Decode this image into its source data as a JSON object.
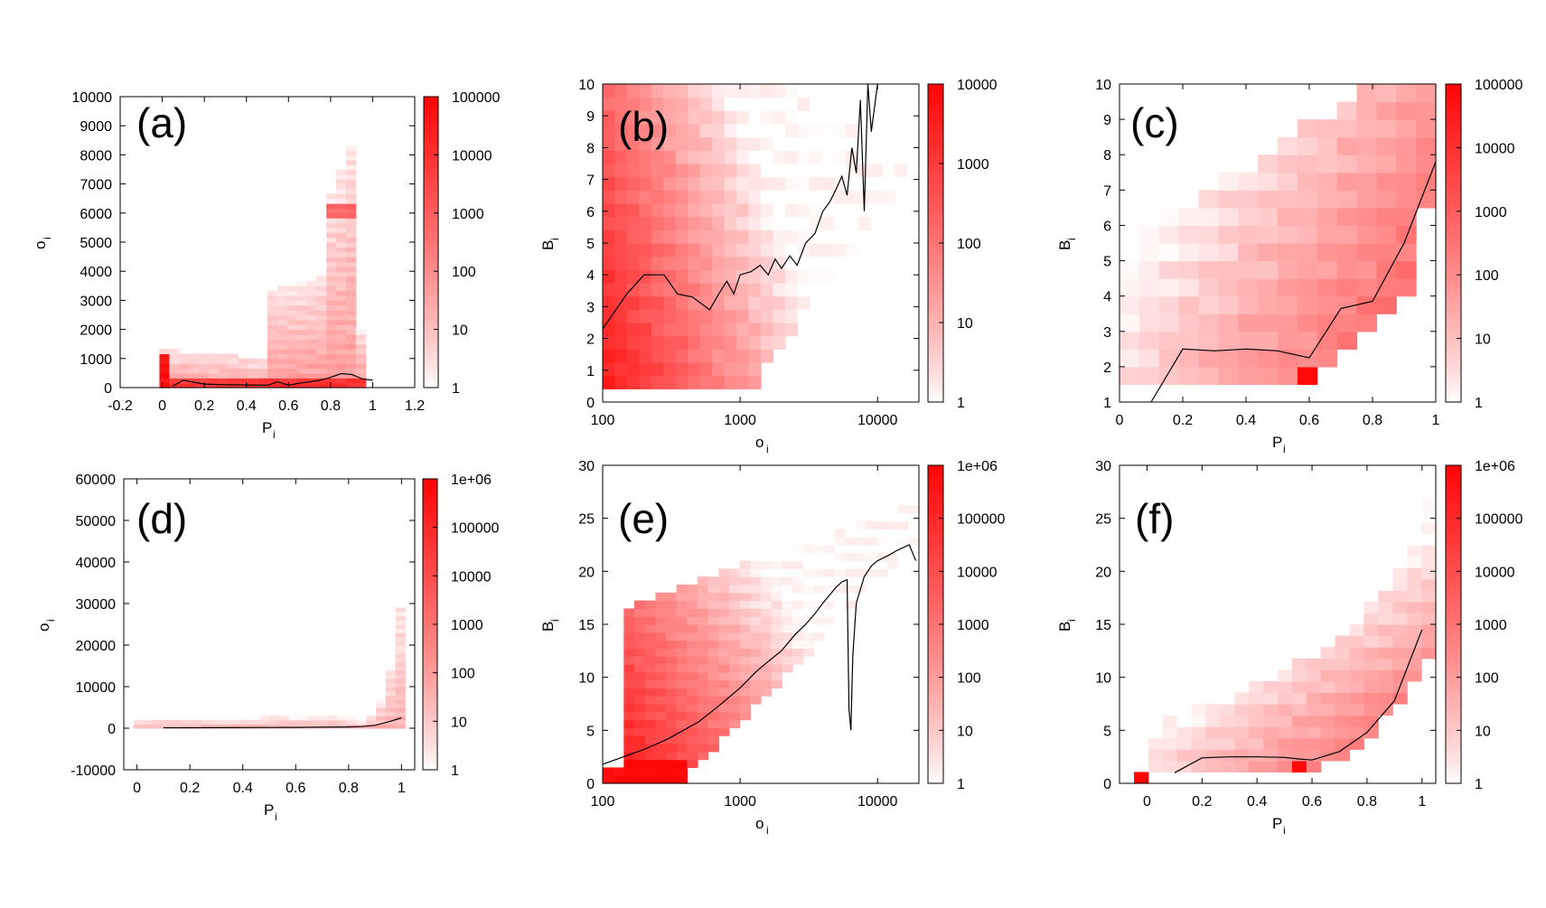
{
  "figure": {
    "background": "#ffffff",
    "accent": "#ff0000",
    "line_color": "#000000"
  },
  "chart_data": [
    {
      "id": "a",
      "type": "heatmap",
      "panel_label": "(a)",
      "xlabel": "P",
      "xlabel_sub": "i",
      "ylabel": "o",
      "ylabel_sub": "i",
      "xscale": "linear",
      "yscale": "linear",
      "xlim": [
        -0.2,
        1.2
      ],
      "ylim": [
        0,
        10000
      ],
      "xticks": [
        -0.2,
        0,
        0.2,
        0.4,
        0.6,
        0.8,
        1,
        1.2
      ],
      "xtick_labels": [
        "-0.2",
        "0",
        "0.2",
        "0.4",
        "0.6",
        "0.8",
        "1",
        "1.2"
      ],
      "yticks": [
        0,
        1000,
        2000,
        3000,
        4000,
        5000,
        6000,
        7000,
        8000,
        9000,
        10000
      ],
      "ytick_labels": [
        "0",
        "1000",
        "2000",
        "3000",
        "4000",
        "5000",
        "6000",
        "7000",
        "8000",
        "9000",
        "10000"
      ],
      "colorbar": {
        "min": 1,
        "max": 100000,
        "scale": "log",
        "ticks": [
          1,
          10,
          100,
          1000,
          10000,
          100000
        ],
        "tick_labels": [
          "1",
          "10",
          "100",
          "1000",
          "10000",
          "100000"
        ]
      },
      "mean_curve": {
        "x": [
          0.05,
          0.1,
          0.2,
          0.3,
          0.4,
          0.5,
          0.55,
          0.6,
          0.65,
          0.7,
          0.75,
          0.8,
          0.85,
          0.9,
          0.95,
          1.0
        ],
        "y": [
          50,
          250,
          120,
          100,
          90,
          80,
          200,
          80,
          150,
          200,
          250,
          350,
          480,
          450,
          300,
          250
        ]
      }
    },
    {
      "id": "b",
      "type": "heatmap",
      "panel_label": "(b)",
      "xlabel": "o",
      "xlabel_sub": "i",
      "ylabel": "B",
      "ylabel_sub": "i",
      "xscale": "log",
      "yscale": "linear",
      "xlim": [
        100,
        20000
      ],
      "ylim": [
        0,
        10
      ],
      "xticks": [
        100,
        1000,
        10000
      ],
      "xtick_labels": [
        "100",
        "1000",
        "10000"
      ],
      "yticks": [
        0,
        1,
        2,
        3,
        4,
        5,
        6,
        7,
        8,
        9,
        10
      ],
      "ytick_labels": [
        "0",
        "1",
        "2",
        "3",
        "4",
        "5",
        "6",
        "7",
        "8",
        "9",
        "10"
      ],
      "colorbar": {
        "min": 1,
        "max": 10000,
        "scale": "log",
        "ticks": [
          1,
          10,
          100,
          1000,
          10000
        ],
        "tick_labels": [
          "1",
          "10",
          "100",
          "1000",
          "10000"
        ]
      },
      "mean_curve": {
        "x": [
          100,
          150,
          200,
          280,
          350,
          450,
          600,
          700,
          800,
          900,
          1000,
          1200,
          1400,
          1600,
          1800,
          2000,
          2300,
          2600,
          3000,
          3500,
          4000,
          4500,
          5000,
          5500,
          6000,
          6500,
          7000,
          7500,
          8000,
          8500,
          9000,
          10000
        ],
        "y": [
          2.3,
          3.4,
          4.0,
          4.0,
          3.4,
          3.3,
          2.9,
          3.4,
          3.8,
          3.4,
          4.0,
          4.1,
          4.3,
          4.0,
          4.5,
          4.2,
          4.6,
          4.3,
          5.0,
          5.3,
          6.0,
          6.3,
          6.7,
          7.1,
          6.5,
          8.0,
          7.2,
          9.5,
          6.0,
          10.0,
          8.5,
          10.0
        ]
      }
    },
    {
      "id": "c",
      "type": "heatmap",
      "panel_label": "(c)",
      "xlabel": "P",
      "xlabel_sub": "i",
      "ylabel": "B",
      "ylabel_sub": "i",
      "xscale": "linear",
      "yscale": "linear",
      "xlim": [
        0,
        1
      ],
      "ylim": [
        1,
        10
      ],
      "xticks": [
        0,
        0.2,
        0.4,
        0.6,
        0.8,
        1
      ],
      "xtick_labels": [
        "0",
        "0.2",
        "0.4",
        "0.6",
        "0.8",
        "1"
      ],
      "yticks": [
        1,
        2,
        3,
        4,
        5,
        6,
        7,
        8,
        9,
        10
      ],
      "ytick_labels": [
        "1",
        "2",
        "3",
        "4",
        "5",
        "6",
        "7",
        "8",
        "9",
        "10"
      ],
      "colorbar": {
        "min": 1,
        "max": 100000,
        "scale": "log",
        "ticks": [
          1,
          10,
          100,
          1000,
          10000,
          100000
        ],
        "tick_labels": [
          "1",
          "10",
          "100",
          "1000",
          "10000",
          "100000"
        ]
      },
      "mean_curve": {
        "x": [
          0.1,
          0.2,
          0.3,
          0.4,
          0.5,
          0.6,
          0.7,
          0.8,
          0.9,
          1.0
        ],
        "y": [
          1.0,
          2.5,
          2.45,
          2.5,
          2.45,
          2.25,
          3.65,
          3.85,
          5.5,
          7.8
        ]
      }
    },
    {
      "id": "d",
      "type": "heatmap",
      "panel_label": "(d)",
      "xlabel": "P",
      "xlabel_sub": "i",
      "ylabel": "o",
      "ylabel_sub": "i",
      "xscale": "linear",
      "yscale": "linear",
      "xlim": [
        -0.05,
        1.05
      ],
      "ylim": [
        -10000,
        60000
      ],
      "xticks": [
        0,
        0.2,
        0.4,
        0.6,
        0.8,
        1
      ],
      "xtick_labels": [
        "0",
        "0.2",
        "0.4",
        "0.6",
        "0.8",
        "1"
      ],
      "yticks": [
        -10000,
        0,
        10000,
        20000,
        30000,
        40000,
        50000,
        60000
      ],
      "ytick_labels": [
        "-10000",
        "0",
        "10000",
        "20000",
        "30000",
        "40000",
        "50000",
        "60000"
      ],
      "colorbar": {
        "min": 1,
        "max": 1000000,
        "scale": "log",
        "ticks": [
          1,
          10,
          100,
          1000,
          10000,
          100000,
          1000000
        ],
        "tick_labels": [
          "1",
          "10",
          "100",
          "1000",
          "10000",
          "100000",
          "1e+06"
        ]
      },
      "mean_curve": {
        "x": [
          0.1,
          0.2,
          0.3,
          0.4,
          0.5,
          0.6,
          0.7,
          0.8,
          0.85,
          0.9,
          0.95,
          1.0
        ],
        "y": [
          100,
          100,
          120,
          150,
          180,
          200,
          250,
          300,
          400,
          700,
          1500,
          2500
        ]
      }
    },
    {
      "id": "e",
      "type": "heatmap",
      "panel_label": "(e)",
      "xlabel": "o",
      "xlabel_sub": "i",
      "ylabel": "B",
      "ylabel_sub": "i",
      "xscale": "log",
      "yscale": "linear",
      "xlim": [
        100,
        20000
      ],
      "ylim": [
        0,
        30
      ],
      "xticks": [
        100,
        1000,
        10000
      ],
      "xtick_labels": [
        "100",
        "1000",
        "10000"
      ],
      "yticks": [
        0,
        5,
        10,
        15,
        20,
        25,
        30
      ],
      "ytick_labels": [
        "0",
        "5",
        "10",
        "15",
        "20",
        "25",
        "30"
      ],
      "colorbar": {
        "min": 1,
        "max": 1000000,
        "scale": "log",
        "ticks": [
          1,
          10,
          100,
          1000,
          10000,
          100000,
          1000000
        ],
        "tick_labels": [
          "1",
          "10",
          "100",
          "1000",
          "10000",
          "100000",
          "1e+06"
        ]
      },
      "mean_curve": {
        "x": [
          100,
          200,
          300,
          500,
          700,
          1000,
          1300,
          1600,
          2000,
          2500,
          3000,
          3500,
          4000,
          4500,
          5000,
          5500,
          6000,
          6200,
          6400,
          6600,
          7000,
          8000,
          9000,
          10000,
          12000,
          14000,
          17000,
          19000
        ],
        "y": [
          1.8,
          3.2,
          4.2,
          5.8,
          7.3,
          9.0,
          10.5,
          11.5,
          12.5,
          14.0,
          15.0,
          16.0,
          17.0,
          17.8,
          18.5,
          19.0,
          19.2,
          7.0,
          5.0,
          12.0,
          17.0,
          19.5,
          20.5,
          21.0,
          21.5,
          22.0,
          22.5,
          21.0
        ]
      }
    },
    {
      "id": "f",
      "type": "heatmap",
      "panel_label": "(f)",
      "xlabel": "P",
      "xlabel_sub": "i",
      "ylabel": "B",
      "ylabel_sub": "i",
      "xscale": "linear",
      "yscale": "linear",
      "xlim": [
        -0.1,
        1.05
      ],
      "ylim": [
        0,
        30
      ],
      "xticks": [
        0,
        0.2,
        0.4,
        0.6,
        0.8,
        1
      ],
      "xtick_labels": [
        "0",
        "0.2",
        "0.4",
        "0.6",
        "0.8",
        "1"
      ],
      "yticks": [
        0,
        5,
        10,
        15,
        20,
        25,
        30
      ],
      "ytick_labels": [
        "0",
        "5",
        "10",
        "15",
        "20",
        "25",
        "30"
      ],
      "colorbar": {
        "min": 1,
        "max": 1000000,
        "scale": "log",
        "ticks": [
          1,
          10,
          100,
          1000,
          10000,
          100000,
          1000000
        ],
        "tick_labels": [
          "1",
          "10",
          "100",
          "1000",
          "10000",
          "100000",
          "1e+06"
        ]
      },
      "mean_curve": {
        "x": [
          0.1,
          0.2,
          0.3,
          0.4,
          0.5,
          0.55,
          0.6,
          0.7,
          0.8,
          0.9,
          1.0
        ],
        "y": [
          1.0,
          2.4,
          2.5,
          2.5,
          2.45,
          2.3,
          2.2,
          3.0,
          4.8,
          7.8,
          14.5
        ]
      }
    }
  ]
}
